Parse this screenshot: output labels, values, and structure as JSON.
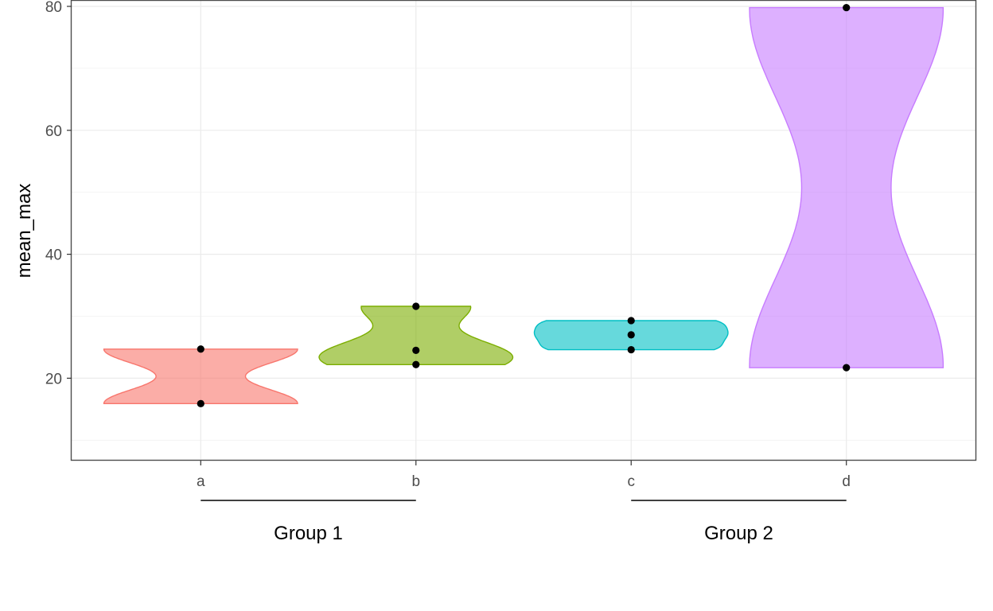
{
  "chart_data": {
    "type": "violin",
    "title": "",
    "xlabel": "",
    "ylabel": "mean_max",
    "ylim": [
      6.7,
      80.9
    ],
    "yticks": [
      20,
      40,
      60,
      80
    ],
    "grid": false,
    "categories": [
      "a",
      "b",
      "c",
      "d"
    ],
    "series": [
      {
        "name": "a",
        "color": "#F8766D",
        "points": [
          15.9,
          24.7
        ]
      },
      {
        "name": "b",
        "color": "#7CAE00",
        "points": [
          22.2,
          24.5,
          31.6
        ]
      },
      {
        "name": "c",
        "color": "#00BFC4",
        "points": [
          24.6,
          27.0,
          29.3
        ]
      },
      {
        "name": "d",
        "color": "#C77CFF",
        "points": [
          21.7,
          79.8
        ]
      }
    ],
    "groups": [
      {
        "label": "Group 1",
        "from": "a",
        "to": "b"
      },
      {
        "label": "Group 2",
        "from": "c",
        "to": "d"
      }
    ]
  }
}
